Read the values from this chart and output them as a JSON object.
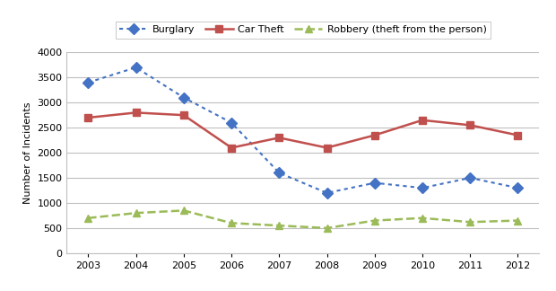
{
  "years": [
    2003,
    2004,
    2005,
    2006,
    2007,
    2008,
    2009,
    2010,
    2011,
    2012
  ],
  "burglary": [
    3400,
    3700,
    3100,
    2600,
    1600,
    1200,
    1400,
    1300,
    1500,
    1300
  ],
  "car_theft": [
    2700,
    2800,
    2750,
    2100,
    2300,
    2100,
    2350,
    2650,
    2550,
    2350
  ],
  "robbery": [
    700,
    800,
    850,
    600,
    550,
    500,
    650,
    700,
    620,
    650
  ],
  "burglary_label": "Burglary",
  "car_theft_label": "Car Theft",
  "robbery_label": "Robbery (theft from the person)",
  "burglary_color": "#4472C4",
  "car_theft_color": "#C0504D",
  "robbery_color": "#9BBB59",
  "ylabel": "Number of Incidents",
  "ylim": [
    0,
    4000
  ],
  "yticks": [
    0,
    500,
    1000,
    1500,
    2000,
    2500,
    3000,
    3500,
    4000
  ],
  "background_color": "#FFFFFF",
  "grid_color": "#C0C0C0",
  "fig_width": 6.2,
  "fig_height": 3.24,
  "dpi": 100
}
